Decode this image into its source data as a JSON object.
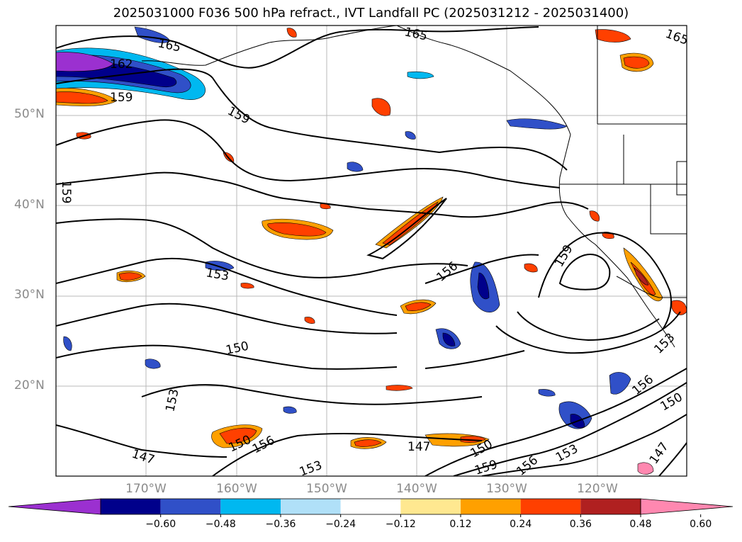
{
  "title": "2025031000 F036 500 hPa refract., IVT Landfall PC (2025031212 - 2025031400)",
  "lat_labels": [
    "50°N",
    "40°N",
    "30°N",
    "20°N"
  ],
  "lon_labels": [
    "170°W",
    "160°W",
    "150°W",
    "140°W",
    "130°W",
    "120°W"
  ],
  "contour_labels": [
    "165",
    "162",
    "159",
    "159",
    "159",
    "159",
    "153",
    "156",
    "150",
    "153",
    "147",
    "150",
    "156",
    "153",
    "147",
    "150",
    "159",
    "156",
    "153",
    "153",
    "156",
    "150",
    "147",
    "165",
    "165",
    "159"
  ],
  "colorbar": {
    "ticks": [
      "−0.60",
      "−0.48",
      "−0.36",
      "−0.24",
      "−0.12",
      "0.12",
      "0.24",
      "0.36",
      "0.48",
      "0.60"
    ],
    "colors": [
      "#9b30d0",
      "#00008b",
      "#3050c8",
      "#00b8f0",
      "#b0e0f8",
      "#ffffff",
      "#ffe890",
      "#ffa000",
      "#ff4000",
      "#b02020",
      "#ff88b0"
    ]
  }
}
